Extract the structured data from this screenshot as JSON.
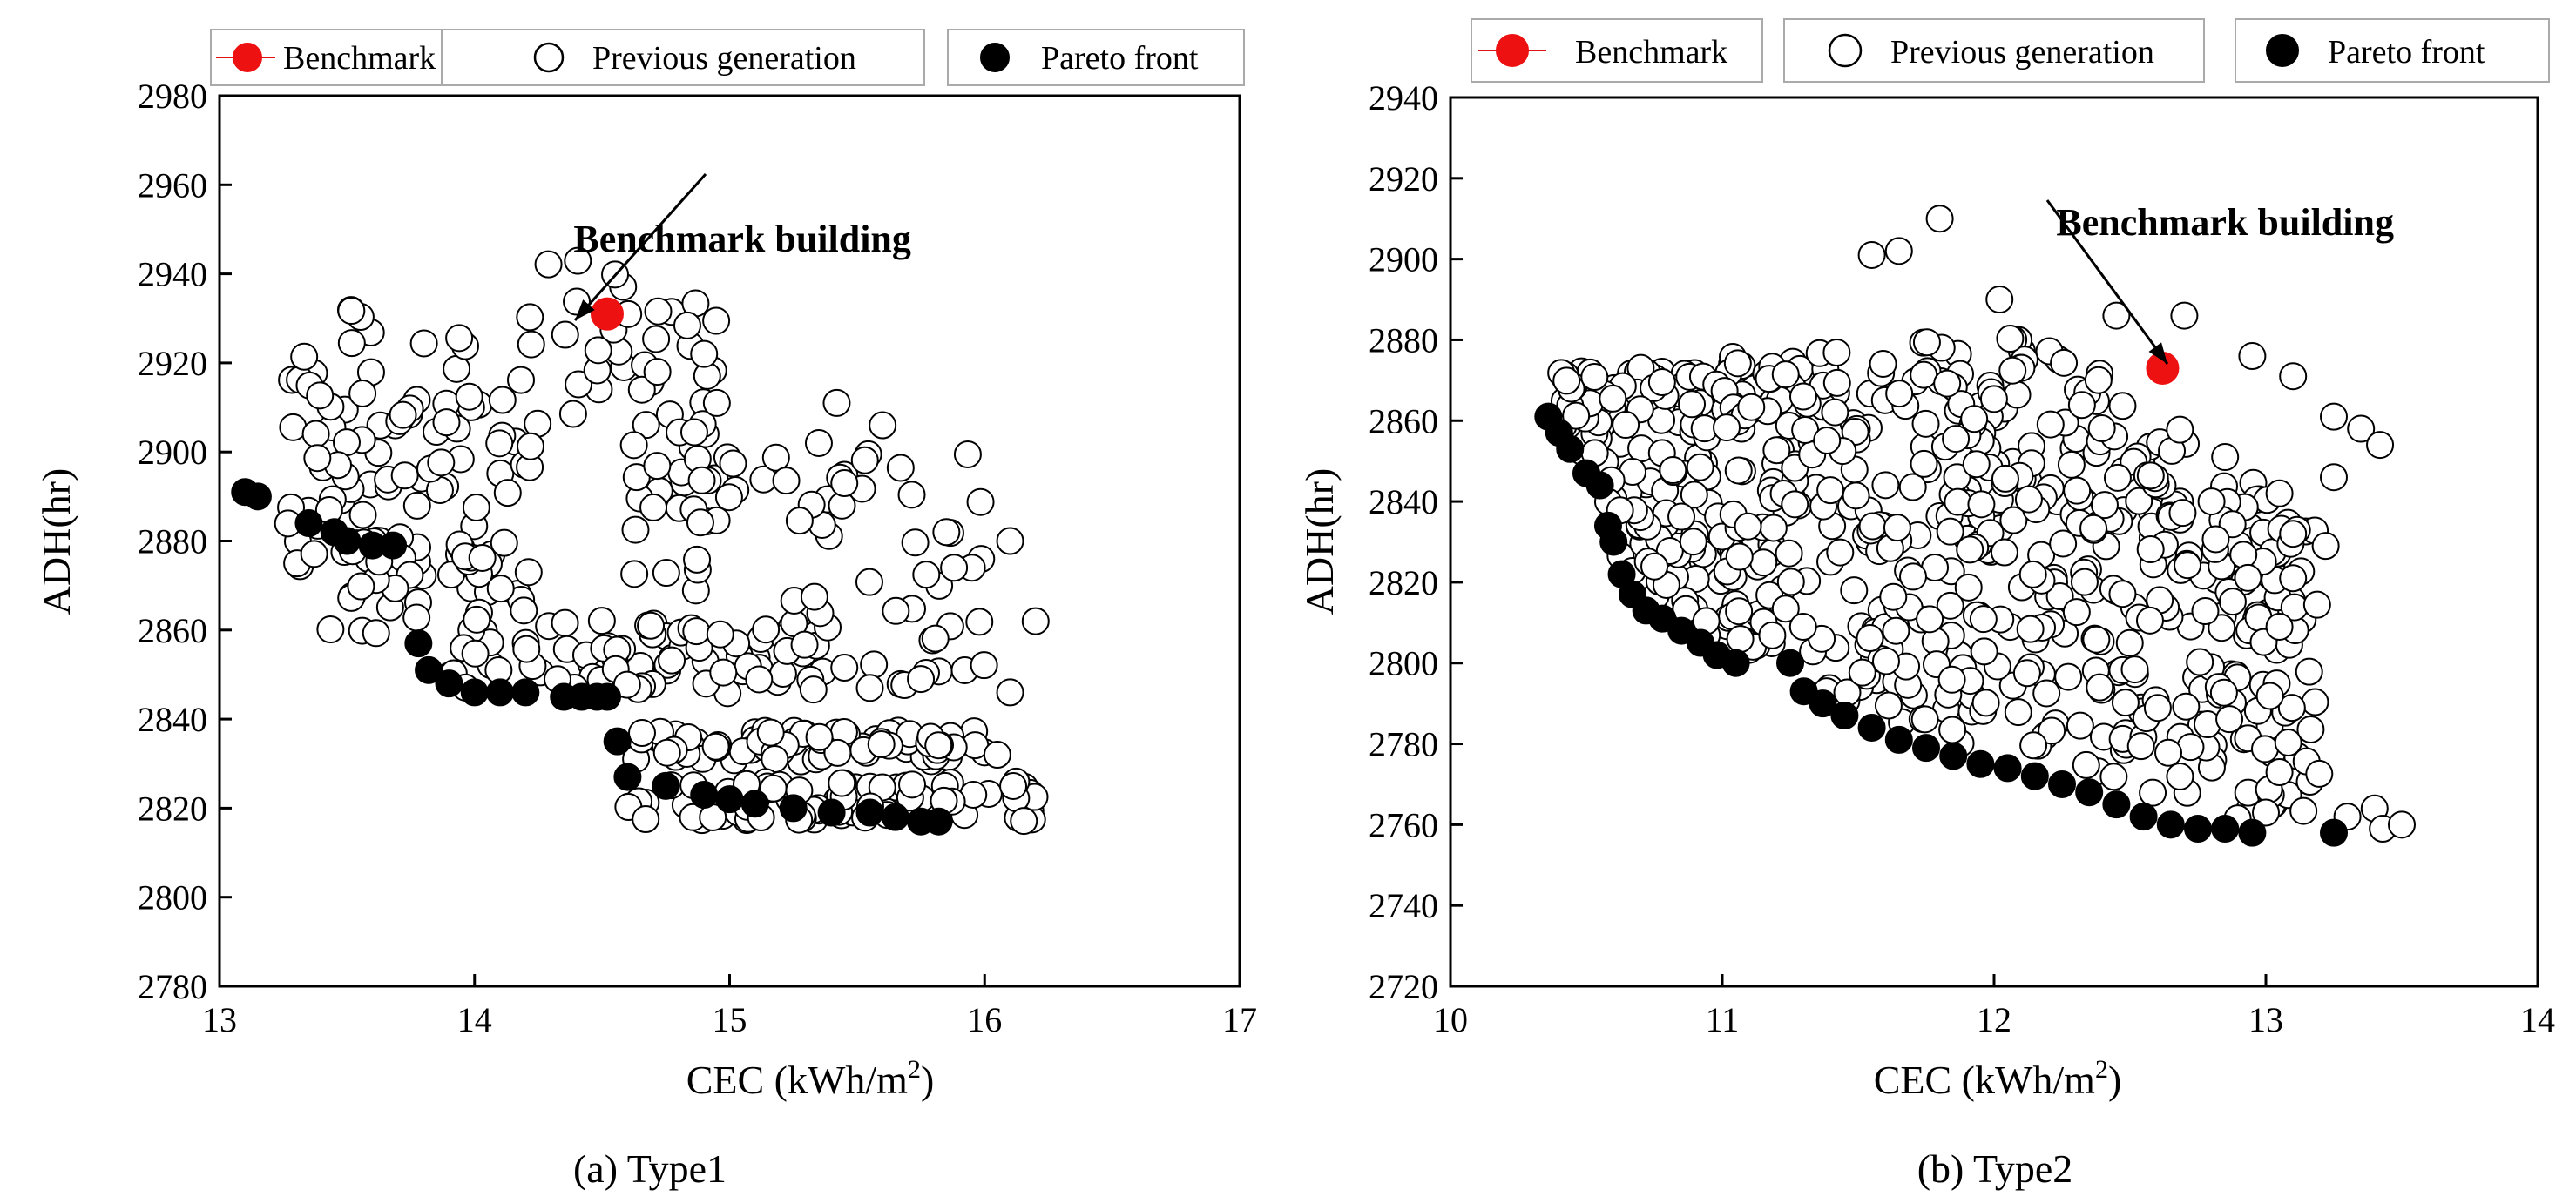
{
  "chart_data": [
    {
      "type": "scatter",
      "caption": "(a) Type1",
      "xlabel": "CEC (kWh/m",
      "xlabel_sup": "2",
      "xlabel_end": ")",
      "ylabel": "ADH(hr)",
      "xlim": [
        13,
        17
      ],
      "ylim": [
        2780,
        2980
      ],
      "xticks": [
        13,
        14,
        15,
        16,
        17
      ],
      "yticks": [
        2780,
        2800,
        2820,
        2840,
        2860,
        2880,
        2900,
        2920,
        2940,
        2960,
        2980
      ],
      "legend": {
        "benchmark": "Benchmark",
        "previous": "Previous generation",
        "pareto": "Pareto front"
      },
      "annotation": "Benchmark building",
      "annotation_text_at": [
        15.05,
        2945
      ],
      "benchmark": [
        14.52,
        2931
      ],
      "pareto": [
        [
          13.1,
          2891
        ],
        [
          13.15,
          2890
        ],
        [
          13.35,
          2884
        ],
        [
          13.45,
          2882
        ],
        [
          13.5,
          2880
        ],
        [
          13.6,
          2879
        ],
        [
          13.68,
          2879
        ],
        [
          13.78,
          2857
        ],
        [
          13.82,
          2851
        ],
        [
          13.9,
          2848
        ],
        [
          14.0,
          2846
        ],
        [
          14.1,
          2846
        ],
        [
          14.2,
          2846
        ],
        [
          14.35,
          2845
        ],
        [
          14.42,
          2845
        ],
        [
          14.48,
          2845
        ],
        [
          14.52,
          2845
        ],
        [
          14.56,
          2835
        ],
        [
          14.6,
          2827
        ],
        [
          14.75,
          2825
        ],
        [
          14.9,
          2823
        ],
        [
          15.0,
          2822
        ],
        [
          15.1,
          2821
        ],
        [
          15.25,
          2820
        ],
        [
          15.4,
          2819
        ],
        [
          15.55,
          2819
        ],
        [
          15.65,
          2818
        ],
        [
          15.75,
          2817
        ],
        [
          15.82,
          2817
        ]
      ],
      "clusters": [
        {
          "n": 100,
          "x": [
            13.25,
            14.2
          ],
          "y": [
            2870,
            2930
          ],
          "slope": -20
        },
        {
          "n": 55,
          "x": [
            14.2,
            14.95
          ],
          "y": [
            2888,
            2940
          ],
          "slope": -30
        },
        {
          "n": 30,
          "x": [
            13.35,
            14.25
          ],
          "y": [
            2855,
            2882
          ],
          "slope": -25
        },
        {
          "n": 75,
          "x": [
            13.9,
            15.4
          ],
          "y": [
            2846,
            2862
          ],
          "slope": -3
        },
        {
          "n": 60,
          "x": [
            14.6,
            16.0
          ],
          "y": [
            2845,
            2900
          ],
          "slope": 0
        },
        {
          "n": 75,
          "x": [
            14.6,
            16.0
          ],
          "y": [
            2830,
            2838
          ],
          "slope": 0
        },
        {
          "n": 85,
          "x": [
            14.6,
            16.25
          ],
          "y": [
            2817,
            2826
          ],
          "slope": 0
        }
      ],
      "extra_previous": [
        [
          16.1,
          2880
        ],
        [
          16.2,
          2862
        ],
        [
          16.1,
          2846
        ],
        [
          15.95,
          2874
        ],
        [
          15.88,
          2874
        ],
        [
          15.85,
          2882
        ],
        [
          15.75,
          2849
        ],
        [
          15.55,
          2847
        ],
        [
          15.42,
          2911
        ],
        [
          15.6,
          2906
        ],
        [
          14.9,
          2922
        ],
        [
          14.95,
          2911
        ],
        [
          16.05,
          2832
        ],
        [
          15.35,
          2902
        ],
        [
          15.45,
          2893
        ]
      ]
    },
    {
      "type": "scatter",
      "caption": "(b) Type2",
      "xlabel": "CEC (kWh/m",
      "xlabel_sup": "2",
      "xlabel_end": ")",
      "ylabel": "ADH(hr)",
      "xlim": [
        10,
        14
      ],
      "ylim": [
        2720,
        2940
      ],
      "xticks": [
        10,
        11,
        12,
        13,
        14
      ],
      "yticks": [
        2720,
        2740,
        2760,
        2780,
        2800,
        2820,
        2840,
        2860,
        2880,
        2900,
        2920,
        2940
      ],
      "legend": {
        "benchmark": "Benchmark",
        "previous": "Previous generation",
        "pareto": "Pareto front"
      },
      "annotation": "Benchmark building",
      "annotation_text_at": [
        12.85,
        2906
      ],
      "benchmark": [
        12.62,
        2873
      ],
      "pareto": [
        [
          10.36,
          2861
        ],
        [
          10.4,
          2857
        ],
        [
          10.44,
          2853
        ],
        [
          10.5,
          2847
        ],
        [
          10.55,
          2844
        ],
        [
          10.58,
          2834
        ],
        [
          10.6,
          2830
        ],
        [
          10.63,
          2822
        ],
        [
          10.67,
          2817
        ],
        [
          10.72,
          2813
        ],
        [
          10.78,
          2811
        ],
        [
          10.85,
          2808
        ],
        [
          10.92,
          2805
        ],
        [
          10.98,
          2802
        ],
        [
          11.05,
          2800
        ],
        [
          11.25,
          2800
        ],
        [
          11.3,
          2793
        ],
        [
          11.37,
          2790
        ],
        [
          11.45,
          2787
        ],
        [
          11.55,
          2784
        ],
        [
          11.65,
          2781
        ],
        [
          11.75,
          2779
        ],
        [
          11.85,
          2777
        ],
        [
          11.95,
          2775
        ],
        [
          12.05,
          2774
        ],
        [
          12.15,
          2772
        ],
        [
          12.25,
          2770
        ],
        [
          12.35,
          2768
        ],
        [
          12.45,
          2765
        ],
        [
          12.55,
          2762
        ],
        [
          12.65,
          2760
        ],
        [
          12.75,
          2759
        ],
        [
          12.85,
          2759
        ],
        [
          12.95,
          2758
        ],
        [
          13.25,
          2758
        ]
      ],
      "clusters": [
        {
          "n": 700,
          "x": [
            10.4,
            13.2
          ],
          "y": [
            2760,
            2890
          ],
          "band": true
        }
      ],
      "extra_previous": [
        [
          11.8,
          2910
        ],
        [
          11.55,
          2901
        ],
        [
          11.65,
          2902
        ],
        [
          12.02,
          2890
        ],
        [
          12.45,
          2886
        ],
        [
          12.7,
          2886
        ],
        [
          12.95,
          2876
        ],
        [
          13.1,
          2871
        ],
        [
          13.25,
          2861
        ],
        [
          13.35,
          2858
        ],
        [
          13.42,
          2854
        ],
        [
          13.25,
          2846
        ],
        [
          13.05,
          2842
        ],
        [
          13.1,
          2832
        ],
        [
          13.22,
          2829
        ],
        [
          13.1,
          2821
        ],
        [
          13.05,
          2809
        ],
        [
          12.85,
          2851
        ],
        [
          12.8,
          2840
        ],
        [
          13.0,
          2763
        ],
        [
          13.3,
          2762
        ],
        [
          13.4,
          2764
        ],
        [
          13.43,
          2759
        ],
        [
          13.5,
          2760
        ],
        [
          13.05,
          2773
        ]
      ]
    }
  ]
}
